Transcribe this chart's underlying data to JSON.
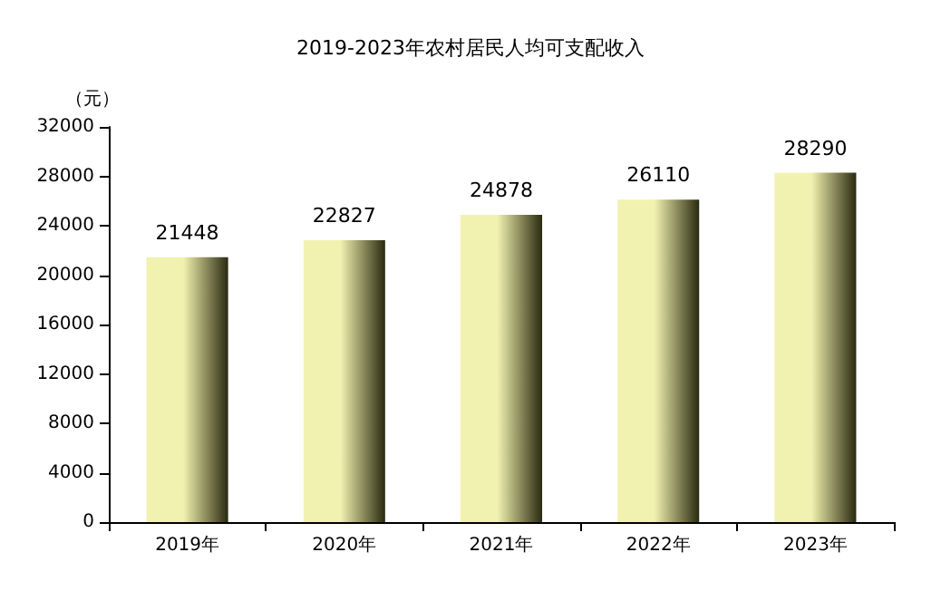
{
  "chart_data": {
    "type": "bar",
    "title": "2019-2023年农村居民人均可支配收入",
    "ylabel": "（元）",
    "categories": [
      "2019年",
      "2020年",
      "2021年",
      "2022年",
      "2023年"
    ],
    "values": [
      21448,
      22827,
      24878,
      26110,
      28290
    ],
    "color": "#f2f2b0",
    "data_labels": true,
    "ylim": [
      0,
      32000
    ],
    "yticks": [
      0,
      4000,
      8000,
      12000,
      16000,
      20000,
      24000,
      28000,
      32000
    ],
    "grid": false
  }
}
